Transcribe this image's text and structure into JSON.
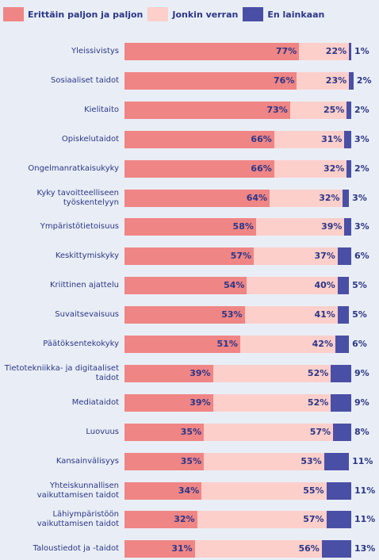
{
  "chart_data": {
    "type": "stacked-bar-horizontal",
    "legend": "top",
    "categories": [
      "Yleissivistys",
      "Sosiaaliset taidot",
      "Kielitaito",
      "Opiskelutaidot",
      "Ongelmanratkaisukyky",
      "Kyky tavoitteelliseen työskentelyyn",
      "Ympäristötietoisuus",
      "Keskittymiskyky",
      "Kriittinen ajattelu",
      "Suvaitsevaisuus",
      "Päätöksentekokyky",
      "Tietotekniikka- ja digitaaliset taidot",
      "Mediataidot",
      "Luovuus",
      "Kansainvälisyys",
      "Yhteiskunnallisen vaikuttamisen taidot",
      "Lähiympäristöön vaikuttamisen taidot",
      "Taloustiedot ja -taidot"
    ],
    "series": [
      {
        "name": "Erittäin paljon ja paljon",
        "color": "#f08585",
        "values": [
          77,
          76,
          73,
          66,
          66,
          64,
          58,
          57,
          54,
          53,
          51,
          39,
          39,
          35,
          35,
          34,
          32,
          31
        ],
        "value_labels": [
          "77%",
          "76%",
          "73%",
          "66%",
          "66%",
          "64%",
          "58%",
          "57%",
          "54%",
          "53%",
          "51%",
          "39%",
          "39%",
          "35%",
          "35%",
          "34%",
          "32%",
          "31%"
        ]
      },
      {
        "name": "Jonkin verran",
        "color": "#fccfcb",
        "values": [
          22,
          23,
          25,
          31,
          32,
          32,
          39,
          37,
          40,
          41,
          42,
          52,
          52,
          57,
          53,
          55,
          57,
          56
        ],
        "value_labels": [
          "22%",
          "23%",
          "25%",
          "31%",
          "32%",
          "32%",
          "39%",
          "37%",
          "40%",
          "41%",
          "42%",
          "52%",
          "52%",
          "57%",
          "53%",
          "55%",
          "57%",
          "56%"
        ]
      },
      {
        "name": "En lainkaan",
        "color": "#4a4fa6",
        "values": [
          1,
          2,
          2,
          3,
          2,
          3,
          3,
          6,
          5,
          5,
          6,
          9,
          9,
          8,
          11,
          11,
          11,
          13
        ],
        "value_labels": [
          "1%",
          "2%",
          "2%",
          "3%",
          "2%",
          "3%",
          "3%",
          "6%",
          "5%",
          "5%",
          "6%",
          "9%",
          "9%",
          "8%",
          "11%",
          "11%",
          "11%",
          "13%"
        ]
      }
    ]
  }
}
